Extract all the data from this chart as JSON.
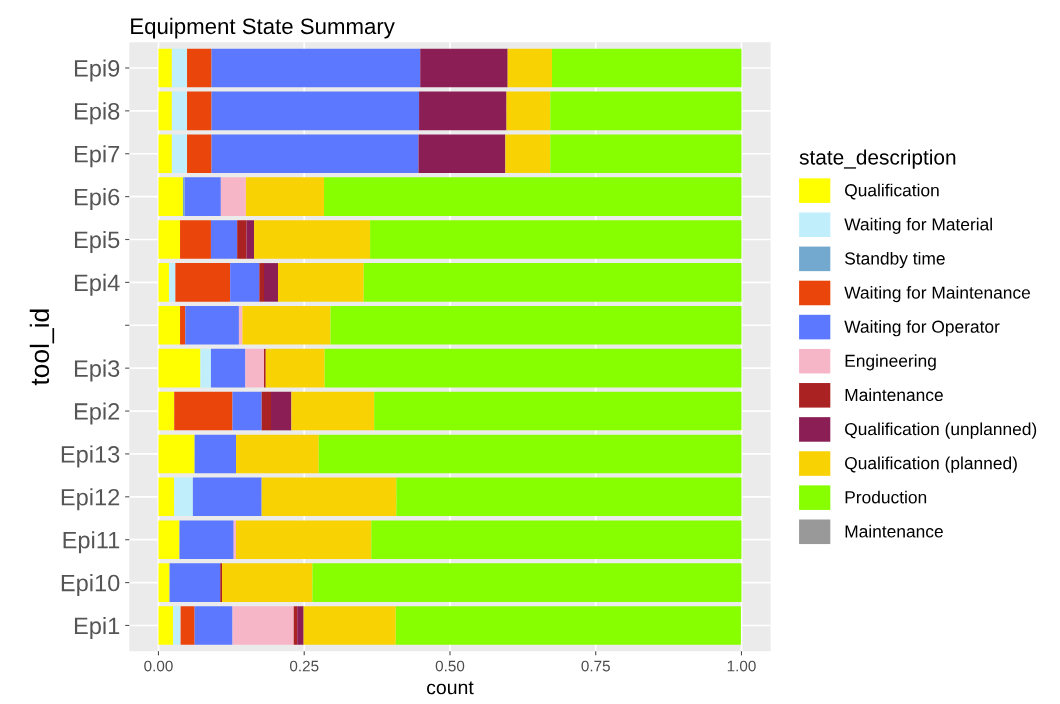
{
  "chart_data": {
    "type": "bar",
    "orientation": "horizontal",
    "stacked": true,
    "title": "Equipment State Summary",
    "xlabel": "count",
    "ylabel": "tool_id",
    "legend_title": "state_description",
    "legend": "right",
    "grid": true,
    "categories": [
      "Epi9",
      "Epi8",
      "Epi7",
      "Epi6",
      "Epi5",
      "Epi4",
      null,
      "Epi3",
      "Epi2",
      "Epi13",
      "Epi12",
      "Epi11",
      "Epi10",
      "Epi1"
    ],
    "xlim": [
      -0.05,
      1.05
    ],
    "xticks": [
      {
        "value": 0,
        "label": "0.00"
      },
      {
        "value": 0.25,
        "label": "0.25"
      },
      {
        "value": 0.5,
        "label": "0.50"
      },
      {
        "value": 0.75,
        "label": "0.75"
      },
      {
        "value": 1,
        "label": "1.00"
      }
    ],
    "series": [
      {
        "name": "Qualification",
        "color": "#ffff00",
        "values": [
          0.023,
          0.023,
          0.023,
          0.042,
          0.037,
          0.018,
          0.037,
          0.072,
          0.027,
          0.062,
          0.027,
          0.036,
          0.019,
          0.025
        ]
      },
      {
        "name": "Waiting for Material",
        "color": "#c1eefb",
        "values": [
          0.026,
          0.026,
          0.026,
          0,
          0,
          0.011,
          0,
          0.018,
          0,
          0,
          0.032,
          0,
          0,
          0.013
        ]
      },
      {
        "name": "Standby time",
        "color": "#74a9cf",
        "values": [
          0,
          0,
          0,
          0.003,
          0,
          0,
          0,
          0,
          0,
          0,
          0,
          0,
          0,
          0
        ]
      },
      {
        "name": "Waiting for Maintenance",
        "color": "#ea460c",
        "values": [
          0.042,
          0.042,
          0.042,
          0,
          0.053,
          0.094,
          0.009,
          0,
          0.1,
          0,
          0,
          0,
          0,
          0.024
        ]
      },
      {
        "name": "Waiting for Operator",
        "color": "#5b78fe",
        "values": [
          0.358,
          0.356,
          0.355,
          0.062,
          0.045,
          0.05,
          0.092,
          0.059,
          0.05,
          0.071,
          0.118,
          0.093,
          0.087,
          0.065
        ]
      },
      {
        "name": "Engineering",
        "color": "#f7b6c8",
        "values": [
          0,
          0,
          0,
          0.043,
          0,
          0,
          0.006,
          0.032,
          0,
          0,
          0,
          0.004,
          0,
          0.105
        ]
      },
      {
        "name": "Maintenance",
        "color": "#aa2222",
        "values": [
          0,
          0,
          0,
          0,
          0.016,
          0.008,
          0,
          0.003,
          0.016,
          0,
          0,
          0,
          0.003,
          0.006
        ]
      },
      {
        "name": "Qualification (unplanned)",
        "color": "#8b1f55",
        "values": [
          0.15,
          0.15,
          0.149,
          0,
          0.013,
          0.024,
          0,
          0,
          0.035,
          0,
          0,
          0,
          0,
          0.011
        ]
      },
      {
        "name": "Qualification (planned)",
        "color": "#f8d203",
        "values": [
          0.076,
          0.075,
          0.077,
          0.134,
          0.199,
          0.147,
          0.151,
          0.101,
          0.142,
          0.142,
          0.231,
          0.232,
          0.155,
          0.158
        ]
      },
      {
        "name": "Production",
        "color": "#88ff00",
        "values": [
          0.325,
          0.328,
          0.328,
          0.716,
          0.637,
          0.648,
          0.705,
          0.715,
          0.63,
          0.725,
          0.592,
          0.635,
          0.736,
          0.592
        ]
      },
      {
        "name": "Maintenance",
        "color": "#999999",
        "values": [
          0,
          0,
          0,
          0,
          0,
          0,
          0,
          0,
          0,
          0,
          0,
          0,
          0,
          0
        ]
      }
    ]
  }
}
